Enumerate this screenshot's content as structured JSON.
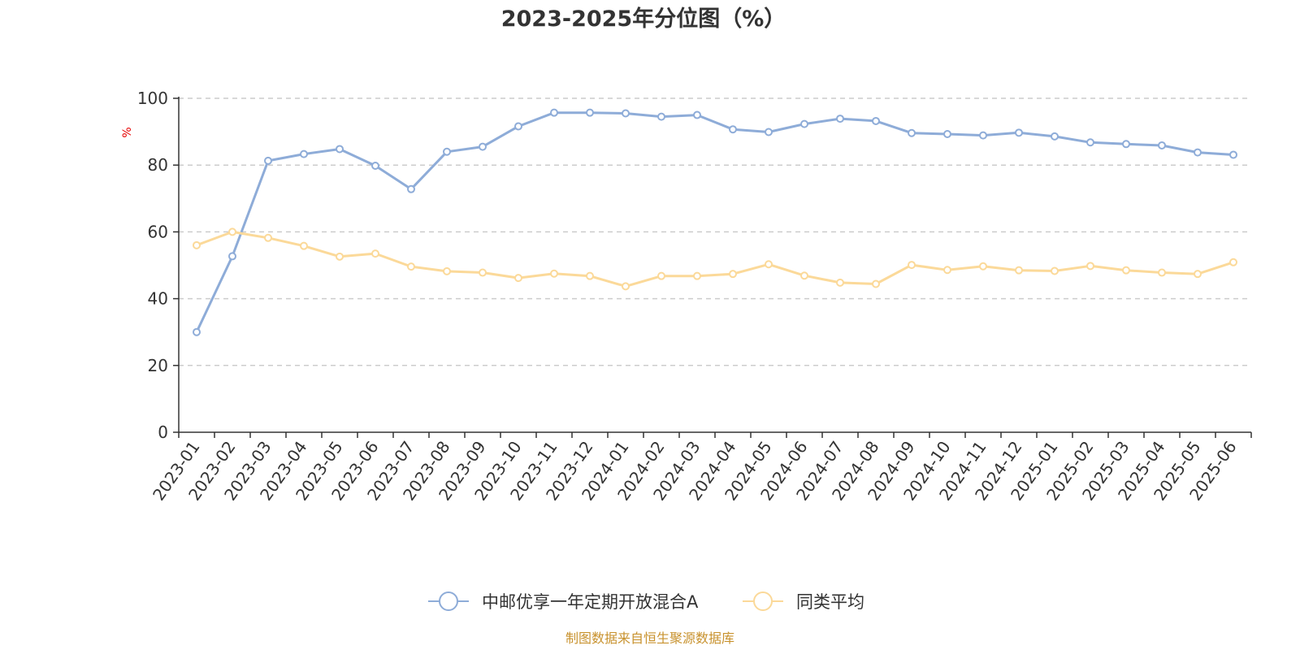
{
  "chart_data": {
    "type": "line",
    "title": "2023-2025年分位图（%）",
    "ylabel": "%",
    "ylim": [
      0,
      100
    ],
    "yticks": [
      0,
      20,
      40,
      60,
      80,
      100
    ],
    "grid": true,
    "legend_position": "bottom",
    "categories": [
      "2023-01",
      "2023-02",
      "2023-03",
      "2023-04",
      "2023-05",
      "2023-06",
      "2023-07",
      "2023-08",
      "2023-09",
      "2023-10",
      "2023-11",
      "2023-12",
      "2024-01",
      "2024-02",
      "2024-03",
      "2024-04",
      "2024-05",
      "2024-06",
      "2024-07",
      "2024-08",
      "2024-09",
      "2024-10",
      "2024-11",
      "2024-12",
      "2025-01",
      "2025-02",
      "2025-03",
      "2025-04",
      "2025-05",
      "2025-06"
    ],
    "series": [
      {
        "name": "中邮优享一年定期开放混合A",
        "color": "#8eacd8",
        "values": [
          30,
          52.7,
          81.3,
          83.3,
          84.8,
          79.8,
          72.8,
          84,
          85.5,
          91.6,
          95.7,
          95.7,
          95.5,
          94.5,
          95,
          90.7,
          89.9,
          92.3,
          93.9,
          93.2,
          89.6,
          89.3,
          88.9,
          89.7,
          88.6,
          86.8,
          86.3,
          85.9,
          83.8,
          83.1
        ]
      },
      {
        "name": "同类平均",
        "color": "#fbd999",
        "values": [
          56,
          60,
          58.2,
          55.8,
          52.6,
          53.5,
          49.6,
          48.2,
          47.8,
          46.2,
          47.5,
          46.8,
          43.7,
          46.8,
          46.8,
          47.4,
          50.3,
          46.9,
          44.8,
          44.4,
          50.1,
          48.6,
          49.7,
          48.5,
          48.3,
          49.8,
          48.5,
          47.8,
          47.4,
          50.9
        ]
      }
    ]
  },
  "footer": {
    "source": "制图数据来自恒生聚源数据库"
  }
}
